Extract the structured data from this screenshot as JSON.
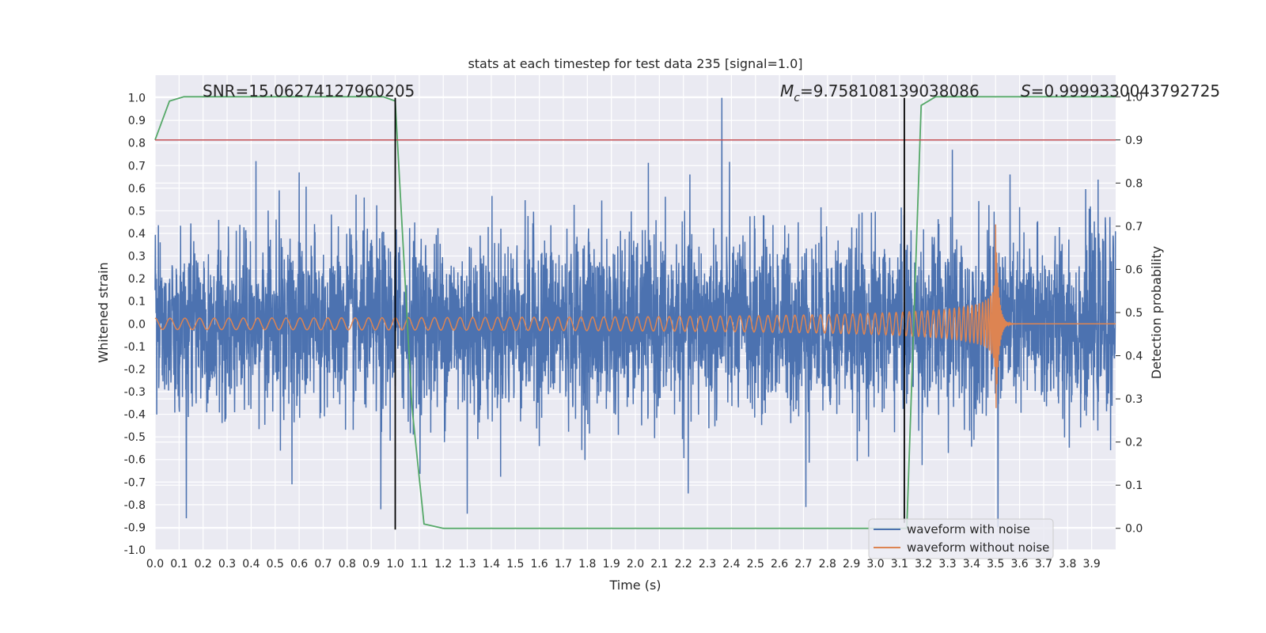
{
  "chart_data": {
    "type": "line",
    "title": "stats at each timestep for test data 235 [signal=1.0]",
    "xlabel": "Time (s)",
    "ylabel": "Whitened strain",
    "ylabel_right": "Detection probability",
    "xlim": [
      0.0,
      4.0
    ],
    "ylim": [
      -1.0,
      1.1
    ],
    "ylim_right": [
      -0.05,
      1.05
    ],
    "x_ticks": [
      "0.0",
      "0.1",
      "0.2",
      "0.3",
      "0.4",
      "0.5",
      "0.6",
      "0.7",
      "0.8",
      "0.9",
      "1.0",
      "1.1",
      "1.2",
      "1.3",
      "1.4",
      "1.5",
      "1.6",
      "1.7",
      "1.8",
      "1.9",
      "2.0",
      "2.1",
      "2.2",
      "2.3",
      "2.4",
      "2.5",
      "2.6",
      "2.7",
      "2.8",
      "2.9",
      "3.0",
      "3.1",
      "3.2",
      "3.3",
      "3.4",
      "3.5",
      "3.6",
      "3.7",
      "3.8",
      "3.9"
    ],
    "y_ticks": [
      "-1.0",
      "-0.9",
      "-0.8",
      "-0.7",
      "-0.6",
      "-0.5",
      "-0.4",
      "-0.3",
      "-0.2",
      "-0.1",
      "0.0",
      "0.1",
      "0.2",
      "0.3",
      "0.4",
      "0.5",
      "0.6",
      "0.7",
      "0.8",
      "0.9",
      "1.0"
    ],
    "y_ticks_right": [
      "0.0",
      "0.1",
      "0.2",
      "0.3",
      "0.4",
      "0.5",
      "0.6",
      "0.7",
      "0.8",
      "0.9",
      "1.0"
    ],
    "grid": true,
    "legend_position": "bottom-right",
    "annotations": {
      "snr": "SNR=15.06274127960205",
      "mc_symbol": "M",
      "mc_sub": "c",
      "mc_value": "=9.758108139038086",
      "s_symbol": "S",
      "s_value": "=0.9999330043792725"
    },
    "series": [
      {
        "name": "waveform with noise",
        "color": "#4c72b0",
        "kind": "noise",
        "std": 0.2,
        "approx_peaks": [
          {
            "x": 0.13,
            "y": 0.63
          },
          {
            "x": 0.42,
            "y": 0.72
          },
          {
            "x": 0.57,
            "y": -0.71
          },
          {
            "x": 0.6,
            "y": 0.67
          },
          {
            "x": 0.13,
            "y": -0.86
          },
          {
            "x": 0.94,
            "y": -0.82
          },
          {
            "x": 1.3,
            "y": -0.84
          },
          {
            "x": 2.22,
            "y": 0.81
          },
          {
            "x": 2.22,
            "y": -0.75
          },
          {
            "x": 2.36,
            "y": 1.0
          },
          {
            "x": 2.71,
            "y": -0.81
          },
          {
            "x": 3.51,
            "y": -0.9
          },
          {
            "x": 3.32,
            "y": 0.77
          }
        ]
      },
      {
        "name": "waveform without noise",
        "color": "#dd8452",
        "kind": "chirp",
        "merger_time": 3.5,
        "initial_amplitude": 0.025,
        "peak_amplitude": 0.44
      }
    ],
    "detection_probability": {
      "color": "#55a868",
      "x": [
        0.0,
        0.06,
        0.12,
        0.3,
        0.5,
        0.7,
        0.9,
        0.95,
        1.0,
        1.07,
        1.12,
        1.2,
        1.5,
        2.0,
        2.5,
        3.0,
        3.13,
        3.19,
        3.25,
        3.5,
        4.0
      ],
      "y": [
        0.9,
        0.99,
        1.0,
        1.0,
        1.0,
        1.0,
        1.0,
        1.0,
        0.99,
        0.28,
        0.01,
        0.0,
        0.0,
        0.0,
        0.0,
        0.0,
        0.0,
        0.98,
        1.0,
        1.0,
        1.0
      ]
    },
    "threshold_line": {
      "value": 0.9,
      "color": "#c44e52"
    },
    "vertical_markers": [
      {
        "x": 1.0,
        "y_from": -0.91,
        "y_to": 1.0
      },
      {
        "x": 3.12,
        "y_from": -0.88,
        "y_to": 1.0
      }
    ]
  }
}
